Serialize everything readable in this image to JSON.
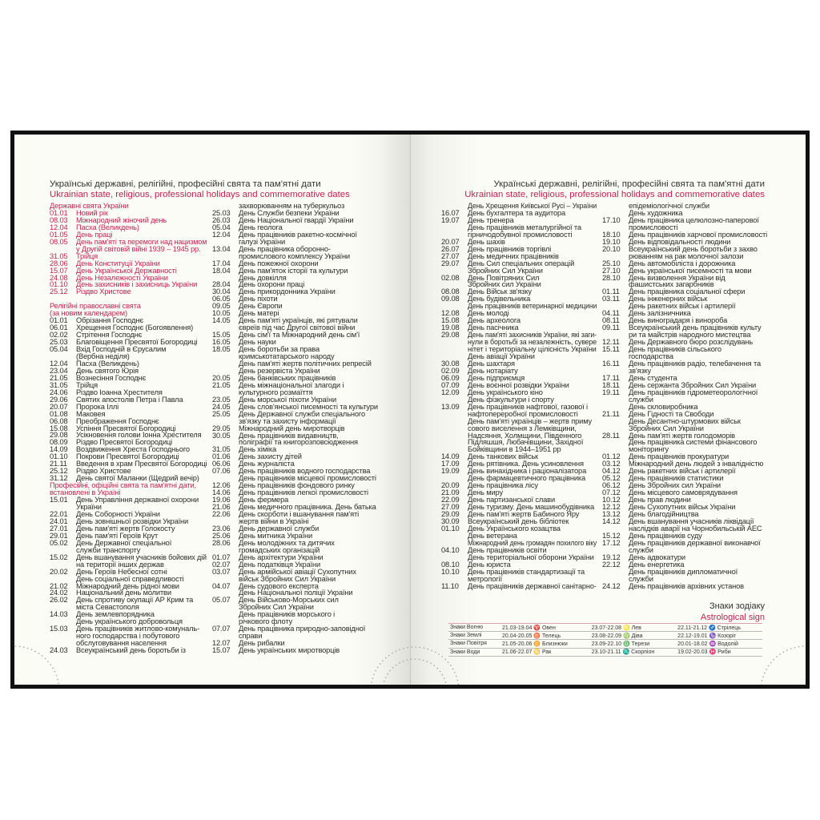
{
  "colors": {
    "accent": "#c02450",
    "text": "#2b2b2b",
    "page": "#fbfcf5",
    "frame": "#111111"
  },
  "title": {
    "ua": "Українські державні, релігійні, професійні свята та пам'ятні дати",
    "en": "Ukrainian state, religious, professional holidays and commemorative dates"
  },
  "columns": [
    [
      {
        "heading": [
          "Державні свята України"
        ],
        "red": true,
        "entries": [
          [
            "01.01",
            "Новий рік"
          ],
          [
            "08.03",
            "Міжнародний жіночий день"
          ],
          [
            "12.04",
            "Пасха (Великдень)"
          ],
          [
            "01.05",
            "День праці"
          ],
          [
            "08.05",
            "День пам'яті та перемоги над нацизмом",
            "у Другій світовій війні 1939 – 1945 рр."
          ],
          [
            "31.05",
            "Трійця"
          ],
          [
            "28.06",
            "День Конституції України"
          ],
          [
            "15.07",
            "День Української Державності"
          ],
          [
            "24.08",
            "День Незалежності України"
          ],
          [
            "01.10",
            "День захисників і захисниць України"
          ],
          [
            "25.12",
            "Різдво Христове"
          ]
        ]
      },
      {
        "heading": [
          "Релігійні православні свята",
          "(за новим календарем)"
        ],
        "gap": true,
        "entries": [
          [
            "01.01",
            "Обрізання Господнє"
          ],
          [
            "06.01",
            "Хрещення Господнє (Богоявлення)"
          ],
          [
            "02.02",
            "Стрітення Господнє"
          ],
          [
            "25.03",
            "Благовіщення Пресвятої Богородиці"
          ],
          [
            "05.04",
            "Вхід Господній в Єрусалим",
            "(Вербна неділя)"
          ],
          [
            "12.04",
            "Пасха (Великдень)"
          ],
          [
            "23.04",
            "День святого Юрія"
          ],
          [
            "21.05",
            "Вознесіння Господнє"
          ],
          [
            "31.05",
            "Трійця"
          ],
          [
            "24.06",
            "Різдво Іоанна Хрестителя"
          ],
          [
            "29.06",
            "Святих апостолів Петра і Павла"
          ],
          [
            "20.07",
            "Пророка Іллі"
          ],
          [
            "01.08",
            "Маковея"
          ],
          [
            "06.08",
            "Преображення Господнє"
          ],
          [
            "15.08",
            "Успіння Пресвятої Богородиці"
          ],
          [
            "29.08",
            "Усікновення голови Іонна Хрестителя"
          ],
          [
            "08.09",
            "Різдво Пресвятої Богородиці"
          ],
          [
            "14.09",
            "Воздвиження Хреста Господнього"
          ],
          [
            "01.10",
            "Покрови Пресвятої Богородиці"
          ],
          [
            "21.11",
            "Введення в храм Пресвятої Богородиці"
          ],
          [
            "25.12",
            "Різдво Христове"
          ],
          [
            "31.12",
            "День святої Маланки (Щедрий вечір)"
          ]
        ]
      },
      {
        "heading": [
          "Професійні, офіційні свята та пам'ятні дати,",
          "встановлені в Україні"
        ],
        "entries": [
          [
            "15.01",
            "День Управління державної охорони",
            "України"
          ],
          [
            "22.01",
            "День Соборності України"
          ],
          [
            "24.01",
            "День зовнішньої розвідки України"
          ],
          [
            "27.01",
            "День пам'яті жертв Голокосту"
          ],
          [
            "29.01",
            "День пам'яті Героїв Крут"
          ],
          [
            "05.02",
            "День Державної спеціальної",
            "служби транспорту"
          ],
          [
            "15.02",
            "День вшанування учасників бойових дій",
            "на території інших держав"
          ],
          [
            "20.02",
            "День Героїв Небесної сотні",
            "День соціальної справедливості"
          ],
          [
            "21.02",
            "Міжнародний день рідної мови"
          ],
          [
            "24.02",
            "Національний день молитви"
          ],
          [
            "26.02",
            "День спротиву окупації АР Крим та",
            "міста Севастополя"
          ],
          [
            "14.03",
            "День землевпорядника",
            "День українського добровольця"
          ],
          [
            "15.03",
            "День працівників житлово-комуналь-",
            "ного господарства і побутового",
            "обслуговування населення"
          ],
          [
            "24.03",
            "Всеукраїнський день боротьби із"
          ]
        ]
      }
    ],
    [
      {
        "entries": [
          [
            "",
            "захворюванням на туберкульоз"
          ],
          [
            "25.03",
            "День Служби безпеки України"
          ],
          [
            "26.03",
            "День Національної гвардії України"
          ],
          [
            "05.04",
            "День геолога"
          ],
          [
            "12.04",
            "День працівників ракетно-космічної",
            "галузі України"
          ],
          [
            "13.04",
            "День працівника оборонно-",
            "промислового комплексу України"
          ],
          [
            "17.04",
            "День пожежної охорони"
          ],
          [
            "18.04",
            "День пам'яток історії та культури",
            "День довкілля"
          ],
          [
            "28.04",
            "День охорони праці"
          ],
          [
            "30.04",
            "День прикордонника України"
          ],
          [
            "06.05",
            "День піхоти"
          ],
          [
            "09.05",
            "День Європи"
          ],
          [
            "10.05",
            "День матері"
          ],
          [
            "14.05",
            "День пам'яті українців, які рятували",
            "євреїв під час Другої світової війни"
          ],
          [
            "15.05",
            "День сім'ї та Міжнародний день сім'ї"
          ],
          [
            "16.05",
            "День науки"
          ],
          [
            "18.05",
            "День боротьби за права",
            "кримськотатарського народу",
            "День пам'яті жертв політичних репресій",
            "День резервіста України"
          ],
          [
            "20.05",
            "День банківських працівників"
          ],
          [
            "21.05",
            "День міжнаціональної злагоди і",
            "культурного розмаїття"
          ],
          [
            "23.05",
            "День морської піхоти України"
          ],
          [
            "24.05",
            "День слов'янської писемності та культури"
          ],
          [
            "25.05",
            "День Державної служби спеціального",
            "зв'язку та захисту інформації"
          ],
          [
            "29.05",
            "Міжнародний день миротворців"
          ],
          [
            "30.05",
            "День працівників видавництв,",
            "поліграфії та книгорозповсюдження"
          ],
          [
            "31.05",
            "День хіміка"
          ],
          [
            "01.06",
            "День захисту дітей"
          ],
          [
            "06.06",
            "День журналіста"
          ],
          [
            "07.06",
            "День працівників водного господарства",
            "День працівників місцевої промисловості"
          ],
          [
            "12.06",
            "День працівників фондового ринку"
          ],
          [
            "14.06",
            "День працівників легкої промисловості"
          ],
          [
            "19.06",
            "День фермера"
          ],
          [
            "21.06",
            "День медичного працівника. День батька"
          ],
          [
            "22.06",
            "День скорботи і вшанування пам'яті",
            "жертв війни в Україні"
          ],
          [
            "23.06",
            "День державної служби"
          ],
          [
            "25.06",
            "День митника України"
          ],
          [
            "28.06",
            "День молодіжних та дитячих",
            "громадських організацій"
          ],
          [
            "01.07",
            "День архітектури України"
          ],
          [
            "02.07",
            "День податківця України"
          ],
          [
            "03.07",
            "День армійської авіації Сухопутних",
            "військ Збройних Сил України"
          ],
          [
            "04.07",
            "День судового експерта",
            "День Національної поліції України"
          ],
          [
            "05.07",
            "День Військово-Морських сил",
            "Збройних Сил України",
            "День працівників морського і",
            "річкового флоту"
          ],
          [
            "07.07",
            "День працівника природно-заповідної",
            "справи"
          ],
          [
            "12.07",
            "День рибалки"
          ],
          [
            "15.07",
            "День українських миротворців"
          ]
        ]
      }
    ],
    [
      {
        "entries": [
          [
            "",
            "День Хрещення Київської Русі – України"
          ],
          [
            "16.07",
            "День бухгалтера та аудитора"
          ],
          [
            "19.07",
            "День тренера",
            "День працівників металургійної  та",
            "гірничодобувної  промисловості"
          ],
          [
            "20.07",
            "День шахів"
          ],
          [
            "26.07",
            "День працівників торгівлі"
          ],
          [
            "27.07",
            "День медичних працівників"
          ],
          [
            "29.07",
            "День Сил спеціальних операцій",
            "Збройних Сил України"
          ],
          [
            "02.08",
            "День Повітряних Сил",
            "Збройних сил України"
          ],
          [
            "08.08",
            "День Військ зв'язку"
          ],
          [
            "09.08",
            "День будівельника",
            "День працівників ветеринарної медицини"
          ],
          [
            "12.08",
            "День молоді"
          ],
          [
            "15.08",
            "День археолога"
          ],
          [
            "19.08",
            "День пасічника"
          ],
          [
            "29.08",
            "День пам'яті захисників України, які заги-",
            "нули в боротьбі за незалежність, сувере",
            "нітет і територіальну цілісність України",
            "День авіації України"
          ],
          [
            "30.08",
            "День шахтаря"
          ],
          [
            "02.09",
            "День нотаріату"
          ],
          [
            "06.09",
            "День підприємця"
          ],
          [
            "07.09",
            "День воєнної розвідки України"
          ],
          [
            "12.09",
            "День українського кіно",
            "День фізкультури і спорту"
          ],
          [
            "13.09",
            "День працівників нафтової, газової і",
            "нафтопереробної промисловості",
            "День пам'яті українців – жертв приму",
            "сового виселення з Лемківщини,",
            "Надсяння, Холмщини, Південного",
            "Підляшшя, Любачівщини, Західної",
            "Бойківщини в 1944–1951 рр"
          ],
          [
            "14.09",
            "День танкових військ"
          ],
          [
            "17.09",
            "День рятівника. День усиновлення"
          ],
          [
            "19.09",
            "День винахідника і раціоналізатора",
            "День фармацевтичного працівника"
          ],
          [
            "20.09",
            "День працівника лісу"
          ],
          [
            "21.09",
            "День миру"
          ],
          [
            "22.09",
            "День партизанської слави"
          ],
          [
            "27.09",
            "День туризму. День машинобудівника"
          ],
          [
            "29.09",
            "День пам'яті жертв Бабиного Яру"
          ],
          [
            "30.09",
            "Всеукраїнський день бібліотек"
          ],
          [
            "01.10",
            "День Українського козацтва",
            "День ветерана",
            "Міжнародний день громадян похилого віку"
          ],
          [
            "04.10",
            "День працівників освіти",
            "День територіальної оборони України"
          ],
          [
            "08.10",
            "День юриста"
          ],
          [
            "10.10",
            "День працівників стандартизації та",
            "метрології"
          ],
          [
            "11.10",
            "День працівників державної санітарно-"
          ]
        ]
      }
    ],
    [
      {
        "entries": [
          [
            "",
            "епідеміологічної служби",
            "День художника"
          ],
          [
            "17.10",
            "День працівника целюлозно-паперової",
            "промисловості"
          ],
          [
            "18.10",
            "День працівників харчової промисловості"
          ],
          [
            "19.10",
            "День відповідальності людини"
          ],
          [
            "20.10",
            "Всеукраїнський день боротьби з захво",
            "рюванням на рак молочної залози"
          ],
          [
            "25.10",
            "День автомобіліста і дорожника"
          ],
          [
            "27.10",
            "День української писемності та мови"
          ],
          [
            "28.10",
            "День визволення України від",
            "фашистських загарбників"
          ],
          [
            "01.11",
            "День працівника соціальної сфери"
          ],
          [
            "03.11",
            "День інженерних військ",
            "День ракетних військ і артилерії"
          ],
          [
            "04.11",
            "День залізничника"
          ],
          [
            "08.11",
            "День виноградаря і винороба"
          ],
          [
            "09.11",
            "Всеукраїнський день працівників культу",
            "ри та майстрів народного мистецтва"
          ],
          [
            "12.11",
            "День Державного бюро розслідувань"
          ],
          [
            "15.11",
            "День працівників сільського",
            "господарства"
          ],
          [
            "16.11",
            "День працівників радіо, телебачення та",
            "зв'язку"
          ],
          [
            "17.11",
            "День студента"
          ],
          [
            "18.11",
            "День сержанта Збройних Сил України"
          ],
          [
            "19.11",
            "День працівників гідрометеорологічної",
            "служби",
            "День скловиробника"
          ],
          [
            "21.11",
            "День Гідності та Свободи",
            "День Десантно-штурмових військ",
            "Збройних Сил України"
          ],
          [
            "28.11",
            "День пам'яті жертв голодоморів",
            "День працівника системи фінансового",
            "моніторингу"
          ],
          [
            "01.12",
            "День працівників прокуратури"
          ],
          [
            "03.12",
            "Міжнародний день людей з інвалідністю"
          ],
          [
            "04.12",
            "День ракетних військ і артилерії"
          ],
          [
            "05.12",
            "День працівників статистики"
          ],
          [
            "06.12",
            "День Збройних сил України"
          ],
          [
            "07.12",
            "День місцевого самоврядування"
          ],
          [
            "10.12",
            "День прав людини"
          ],
          [
            "12.12",
            "День Сухопутних військ України"
          ],
          [
            "13.12",
            "День благодійництва"
          ],
          [
            "14.12",
            "День вшанування учасників ліквідації",
            "наслідків аварії на Чорнобильській АЕС"
          ],
          [
            "15.12",
            "День працівників суду"
          ],
          [
            "17.12",
            "День працівників державної виконавчої",
            "служби"
          ],
          [
            "19.12",
            "День адвокатури"
          ],
          [
            "22.12",
            "День енергетика",
            "День працівників дипломатичної",
            "служби"
          ],
          [
            "24.12",
            "День працівників архівних установ"
          ]
        ]
      }
    ]
  ],
  "zodiac": {
    "title_ua": "Знаки зодіаку",
    "title_en": "Astrological sign",
    "rows": [
      {
        "group": "Знаки Вогню",
        "signs": [
          "21.03-19.04 ♈ Овен",
          "23.07-22.08 ♌ Лев",
          "22.11-21.12 ♐ Стрілець"
        ]
      },
      {
        "group": "Знаки Землі",
        "signs": [
          "20.04-20.05 ♉ Телець",
          "23.08-22.09 ♍ Діва",
          "22.12-19.01 ♑ Козоріг"
        ]
      },
      {
        "group": "Знаки Повітря",
        "signs": [
          "21.05-20.06 ♊ Близнюки",
          "23.09-22.10 ♎ Терези",
          "20.01-18.02 ♒ Водолій"
        ]
      },
      {
        "group": "Знаки Води",
        "signs": [
          "21.06-22.07 ♋ Рак",
          "23.10-21.11 ♏ Скорпіон",
          "19.02-20.03 ♓ Риби"
        ]
      }
    ]
  }
}
